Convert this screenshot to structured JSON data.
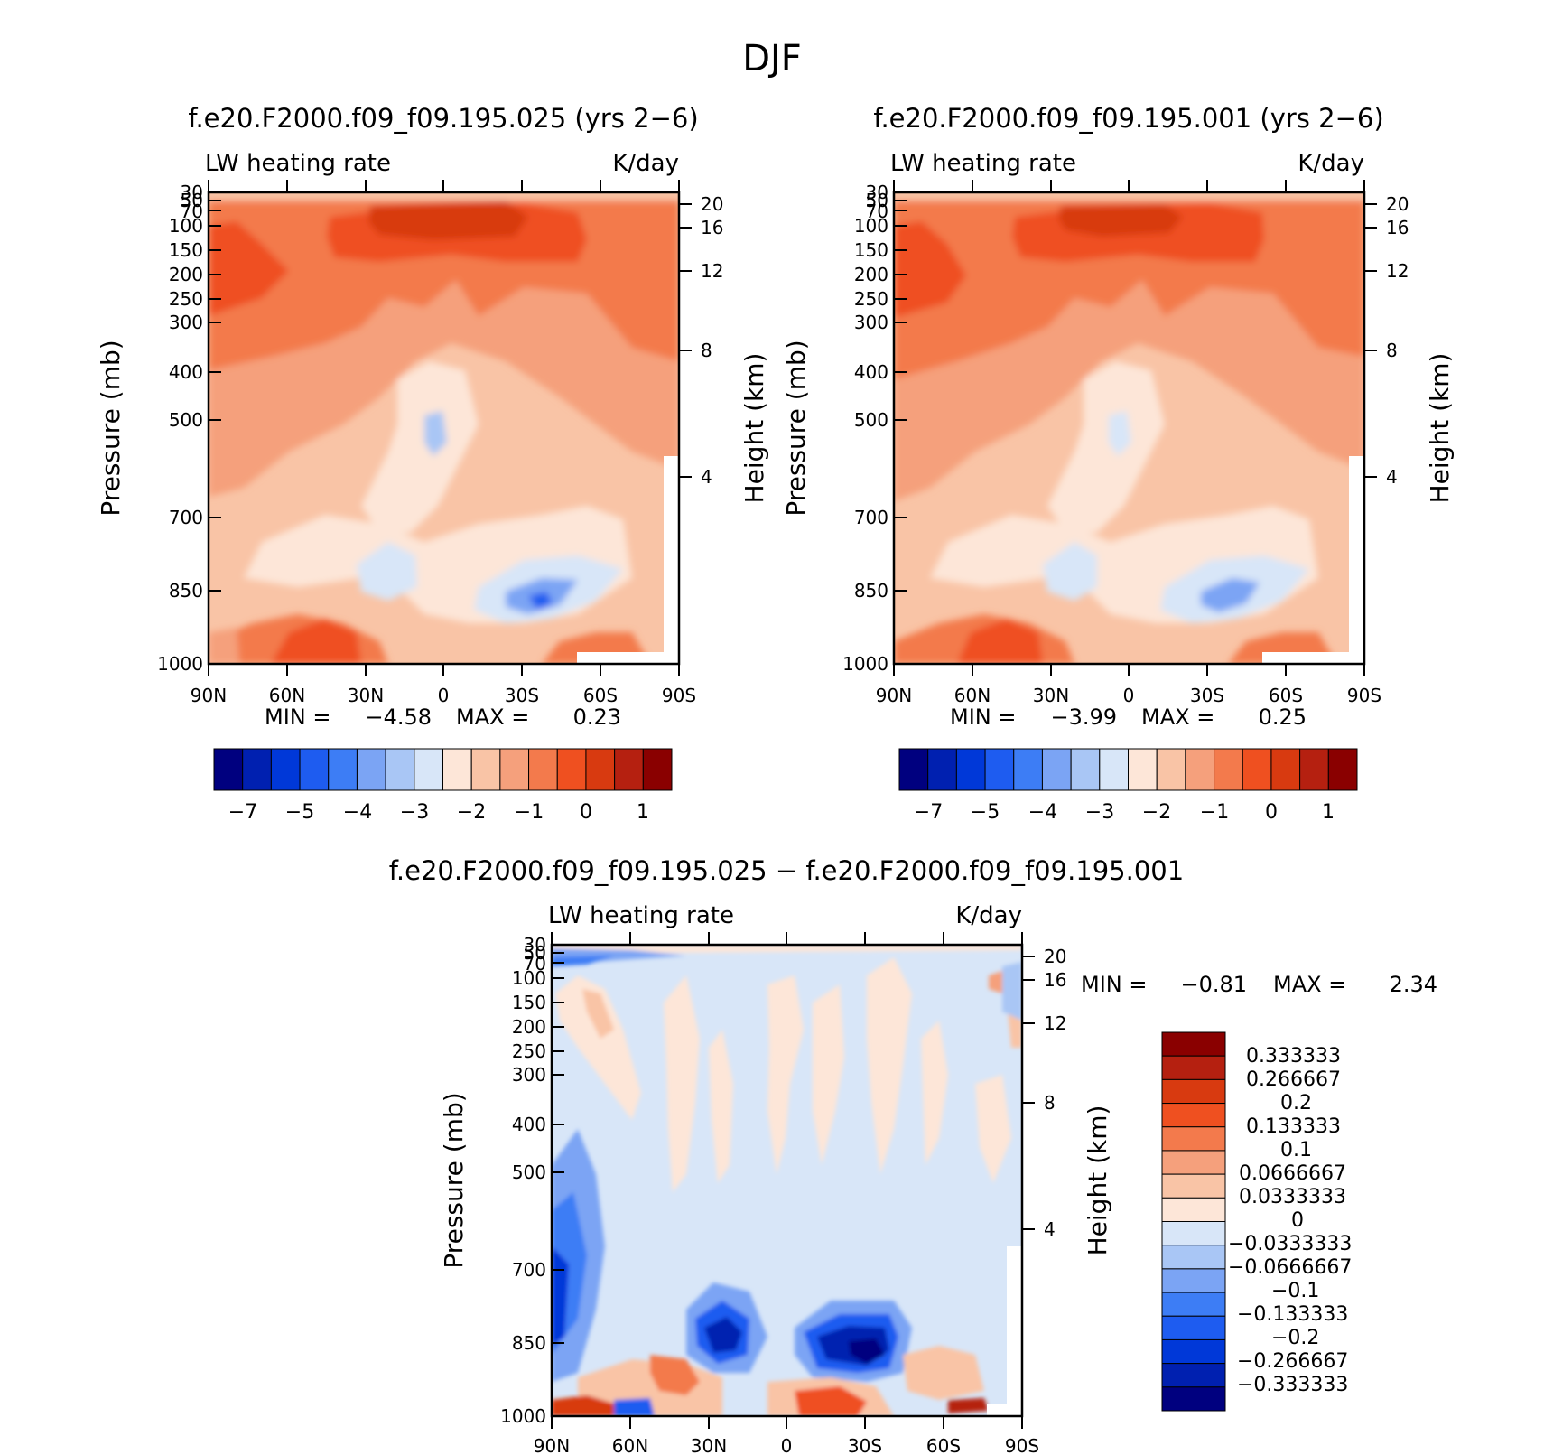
{
  "figure_title": "DJF",
  "panels": [
    {
      "id": "case",
      "title": "f.e20.F2000.f09_f09.195.025 (yrs 2-6)",
      "left_label": "LW heating rate",
      "right_label": "K/day",
      "min_label": "MIN =",
      "min_value": "-4.58",
      "max_label": "MAX =",
      "max_value": "0.23"
    },
    {
      "id": "control",
      "title": "f.e20.F2000.f09_f09.195.001 (yrs 2-6)",
      "left_label": "LW heating rate",
      "right_label": "K/day",
      "min_label": "MIN =",
      "min_value": "-3.99",
      "max_label": "MAX =",
      "max_value": "0.25"
    },
    {
      "id": "difference",
      "title": "f.e20.F2000.f09_f09.195.025 - f.e20.F2000.f09_f09.195.001",
      "left_label": "LW heating rate",
      "right_label": "K/day",
      "min_label": "MIN =",
      "min_value": "-0.81",
      "max_label": "MAX =",
      "max_value": "2.34"
    }
  ],
  "chart_data": [
    {
      "type": "heatmap",
      "panel": "case",
      "title": "f.e20.F2000.f09_f09.195.025 (yrs 2-6)",
      "xlabel": "",
      "ylabel": "Pressure (mb)",
      "y2label": "Height (km)",
      "x_ticks": [
        "90N",
        "60N",
        "30N",
        "0",
        "30S",
        "60S",
        "90S"
      ],
      "y_ticks": [
        "30",
        "50",
        "70",
        "100",
        "150",
        "200",
        "250",
        "300",
        "400",
        "500",
        "700",
        "850",
        "1000"
      ],
      "y2_ticks": [
        "20",
        "16",
        "12",
        "8",
        "4"
      ],
      "colorbar": {
        "orientation": "horizontal",
        "labels": [
          "-7",
          "-5",
          "-4",
          "-3",
          "-2",
          "-1",
          "0",
          "1"
        ]
      },
      "min": -4.58,
      "max": 0.23
    },
    {
      "type": "heatmap",
      "panel": "control",
      "title": "f.e20.F2000.f09_f09.195.001 (yrs 2-6)",
      "xlabel": "",
      "ylabel": "Pressure (mb)",
      "y2label": "Height (km)",
      "x_ticks": [
        "90N",
        "60N",
        "30N",
        "0",
        "30S",
        "60S",
        "90S"
      ],
      "y_ticks": [
        "30",
        "50",
        "70",
        "100",
        "150",
        "200",
        "250",
        "300",
        "400",
        "500",
        "700",
        "850",
        "1000"
      ],
      "y2_ticks": [
        "20",
        "16",
        "12",
        "8",
        "4"
      ],
      "colorbar": {
        "orientation": "horizontal",
        "labels": [
          "-7",
          "-5",
          "-4",
          "-3",
          "-2",
          "-1",
          "0",
          "1"
        ]
      },
      "min": -3.99,
      "max": 0.25
    },
    {
      "type": "heatmap",
      "panel": "difference",
      "title": "f.e20.F2000.f09_f09.195.025 - f.e20.F2000.f09_f09.195.001",
      "xlabel": "",
      "ylabel": "Pressure (mb)",
      "y2label": "Height (km)",
      "x_ticks": [
        "90N",
        "60N",
        "30N",
        "0",
        "30S",
        "60S",
        "90S"
      ],
      "y_ticks": [
        "30",
        "50",
        "70",
        "100",
        "150",
        "200",
        "250",
        "300",
        "400",
        "500",
        "700",
        "850",
        "1000"
      ],
      "y2_ticks": [
        "20",
        "16",
        "12",
        "8",
        "4"
      ],
      "colorbar": {
        "orientation": "vertical",
        "labels": [
          "0.333333",
          "0.266667",
          "0.2",
          "0.133333",
          "0.1",
          "0.0666667",
          "0.0333333",
          "0",
          "-0.0333333",
          "-0.0666667",
          "-0.1",
          "-0.133333",
          "-0.2",
          "-0.266667",
          "-0.333333"
        ]
      },
      "min": -0.81,
      "max": 2.34
    }
  ],
  "palette": [
    "#00007f",
    "#0020b0",
    "#0038d8",
    "#1e5cf0",
    "#3d7df5",
    "#7ba4f4",
    "#a9c6f5",
    "#d8e6f8",
    "#fde6d8",
    "#f9c4a6",
    "#f5a07c",
    "#f37a4c",
    "#ef5020",
    "#d83a10",
    "#b52010",
    "#8a0000"
  ]
}
